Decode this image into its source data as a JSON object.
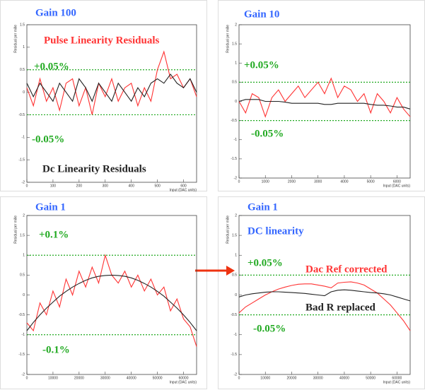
{
  "chart_data": [
    {
      "type": "line",
      "title": "Gain 100",
      "xlabel": "Input (DAC units)",
      "ylabel": "Residual per mille",
      "x": [
        0,
        25,
        50,
        75,
        100,
        125,
        150,
        175,
        200,
        225,
        250,
        275,
        300,
        325,
        350,
        375,
        400,
        425,
        450,
        475,
        500,
        525,
        550,
        575,
        600,
        625,
        650
      ],
      "xlim": [
        0,
        650
      ],
      "xticks": [
        0,
        100,
        200,
        300,
        400,
        500,
        600
      ],
      "ylim": [
        -2,
        1.5
      ],
      "yticks": [
        -2,
        -1.5,
        -1,
        -0.5,
        0,
        0.5,
        1,
        1.5
      ],
      "hlines": [
        0.5,
        -0.5
      ],
      "hline_color": "#22aa22",
      "series": [
        {
          "name": "Pulse Linearity Residuals",
          "color": "#ff3333",
          "values": [
            0.1,
            -0.3,
            0.3,
            -0.2,
            0.1,
            -0.4,
            0.2,
            0.3,
            -0.3,
            0.1,
            -0.5,
            0.2,
            -0.1,
            0.3,
            -0.2,
            0.1,
            0.2,
            -0.3,
            0.1,
            -0.2,
            0.5,
            0.9,
            0.3,
            0.4,
            0.1,
            0.3,
            -0.1
          ]
        },
        {
          "name": "Dc Linearity Residuals",
          "color": "#222222",
          "values": [
            0.2,
            -0.1,
            0.2,
            0.0,
            -0.2,
            0.2,
            0.0,
            -0.2,
            0.3,
            0.1,
            -0.2,
            0.2,
            0.0,
            -0.2,
            0.2,
            0.0,
            -0.2,
            0.1,
            -0.1,
            0.2,
            0.3,
            0.2,
            0.4,
            0.2,
            0.1,
            0.3,
            0.0
          ]
        }
      ],
      "annotations": [
        {
          "text": "+0.05%",
          "color": "#22aa22"
        },
        {
          "text": "-0.05%",
          "color": "#22aa22"
        }
      ]
    },
    {
      "type": "line",
      "title": "Gain 10",
      "xlabel": "Input (DAC units)",
      "ylabel": "Residual per mille",
      "x": [
        0,
        250,
        500,
        750,
        1000,
        1250,
        1500,
        1750,
        2000,
        2250,
        2500,
        2750,
        3000,
        3250,
        3500,
        3750,
        4000,
        4250,
        4500,
        4750,
        5000,
        5250,
        5500,
        5750,
        6000,
        6250,
        6500
      ],
      "xlim": [
        0,
        6500
      ],
      "xticks": [
        0,
        1000,
        2000,
        3000,
        4000,
        5000,
        6000
      ],
      "ylim": [
        -2,
        2
      ],
      "yticks": [
        -2,
        -1.5,
        -1,
        -0.5,
        0,
        0.5,
        1,
        1.5,
        2
      ],
      "hlines": [
        0.5,
        -0.5
      ],
      "hline_color": "#22aa22",
      "series": [
        {
          "color": "#ff3333",
          "values": [
            0.0,
            -0.3,
            0.2,
            0.1,
            -0.4,
            0.1,
            0.3,
            0.0,
            0.2,
            0.4,
            0.1,
            0.3,
            0.5,
            0.2,
            0.6,
            0.1,
            0.4,
            0.3,
            0.0,
            0.2,
            -0.3,
            0.2,
            0.0,
            -0.3,
            0.1,
            -0.2,
            -0.4
          ]
        },
        {
          "color": "#222222",
          "values": [
            0.0,
            0.05,
            0.05,
            0.05,
            0.0,
            0.0,
            0.0,
            -0.02,
            -0.05,
            -0.05,
            -0.05,
            -0.05,
            -0.05,
            -0.08,
            -0.08,
            -0.05,
            -0.05,
            -0.05,
            -0.05,
            -0.05,
            -0.08,
            -0.1,
            -0.1,
            -0.12,
            -0.15,
            -0.15,
            -0.2
          ]
        }
      ],
      "annotations": [
        {
          "text": "+0.05%",
          "color": "#22aa22"
        },
        {
          "text": "-0.05%",
          "color": "#22aa22"
        }
      ]
    },
    {
      "type": "line",
      "title": "Gain 1",
      "xlabel": "Input (DAC units)",
      "ylabel": "Residual per mille",
      "x": [
        0,
        2500,
        5000,
        7500,
        10000,
        12500,
        15000,
        17500,
        20000,
        22500,
        25000,
        27500,
        30000,
        32500,
        35000,
        37500,
        40000,
        42500,
        45000,
        47500,
        50000,
        52500,
        55000,
        57500,
        60000,
        62500,
        65000
      ],
      "xlim": [
        0,
        65000
      ],
      "xticks": [
        0,
        10000,
        20000,
        30000,
        40000,
        50000,
        60000
      ],
      "ylim": [
        -2,
        2
      ],
      "yticks": [
        -2,
        -1.5,
        -1,
        -0.5,
        0,
        0.5,
        1,
        1.5,
        2
      ],
      "hlines": [
        1,
        -1
      ],
      "hline_color": "#22aa22",
      "series": [
        {
          "color": "#ff3333",
          "values": [
            -0.7,
            -0.9,
            -0.2,
            -0.5,
            0.1,
            -0.3,
            0.4,
            0.0,
            0.6,
            0.2,
            0.7,
            0.3,
            1.0,
            0.5,
            0.3,
            0.6,
            0.2,
            0.5,
            0.1,
            0.4,
            0.0,
            0.2,
            -0.4,
            -0.1,
            -0.6,
            -0.8,
            -1.3
          ]
        },
        {
          "color": "#222222",
          "values": [
            -0.9,
            -0.69,
            -0.5,
            -0.33,
            -0.18,
            -0.03,
            0.09,
            0.2,
            0.29,
            0.37,
            0.43,
            0.47,
            0.49,
            0.5,
            0.49,
            0.47,
            0.43,
            0.37,
            0.29,
            0.2,
            0.09,
            -0.03,
            -0.18,
            -0.33,
            -0.5,
            -0.69,
            -0.9
          ]
        }
      ],
      "annotations": [
        {
          "text": "+0.1%",
          "color": "#22aa22"
        },
        {
          "text": "-0.1%",
          "color": "#22aa22"
        }
      ]
    },
    {
      "type": "line",
      "title": "Gain 1",
      "subtitle": "DC linearity",
      "xlabel": "Input (DAC units)",
      "ylabel": "Residual per mille",
      "x": [
        0,
        2500,
        5000,
        7500,
        10000,
        12500,
        15000,
        17500,
        20000,
        22500,
        25000,
        27500,
        30000,
        32500,
        35000,
        37500,
        40000,
        42500,
        45000,
        47500,
        50000,
        52500,
        55000,
        57500,
        60000,
        62500,
        65000
      ],
      "xlim": [
        0,
        65000
      ],
      "xticks": [
        0,
        10000,
        20000,
        30000,
        40000,
        50000,
        60000
      ],
      "ylim": [
        -2,
        2
      ],
      "yticks": [
        -2,
        -1.5,
        -1,
        -0.5,
        0,
        0.5,
        1,
        1.5,
        2
      ],
      "hlines": [
        0.5,
        -0.5
      ],
      "hline_color": "#22aa22",
      "series": [
        {
          "name": "Dac Ref corrected",
          "color": "#ff3333",
          "values": [
            -0.45,
            -0.3,
            -0.2,
            -0.1,
            0.0,
            0.08,
            0.15,
            0.2,
            0.24,
            0.27,
            0.28,
            0.28,
            0.25,
            0.22,
            0.18,
            0.3,
            0.32,
            0.33,
            0.3,
            0.25,
            0.15,
            0.05,
            -0.1,
            -0.25,
            -0.45,
            -0.65,
            -0.9
          ]
        },
        {
          "name": "Bad R replaced",
          "color": "#222222",
          "values": [
            -0.05,
            0.0,
            0.03,
            0.05,
            0.07,
            0.08,
            0.08,
            0.07,
            0.06,
            0.05,
            0.04,
            0.02,
            0.0,
            -0.02,
            0.08,
            0.12,
            0.13,
            0.12,
            0.1,
            0.08,
            0.06,
            0.05,
            0.03,
            0.0,
            -0.05,
            -0.1,
            -0.15
          ]
        }
      ],
      "annotations": [
        {
          "text": "+0.05%",
          "color": "#22aa22"
        },
        {
          "text": "-0.05%",
          "color": "#22aa22"
        }
      ]
    }
  ]
}
